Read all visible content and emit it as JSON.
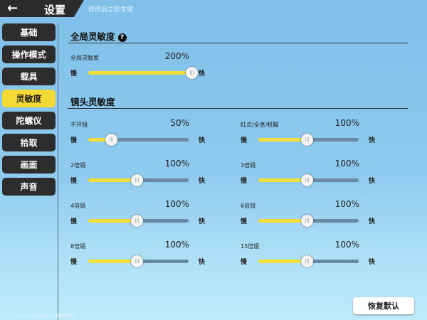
{
  "header": {
    "back_icon": "arrow-left-icon",
    "title": "设置",
    "subtitle": "修改后立即生效"
  },
  "sidebar": {
    "items": [
      {
        "label": "基础"
      },
      {
        "label": "操作模式"
      },
      {
        "label": "载具"
      },
      {
        "label": "灵敏度",
        "active": true
      },
      {
        "label": "陀螺仪"
      },
      {
        "label": "拾取"
      },
      {
        "label": "画面"
      },
      {
        "label": "声音"
      }
    ]
  },
  "global": {
    "title": "全局灵敏度",
    "help_icon": "question-icon",
    "label": "全局灵敏度",
    "value": "200%",
    "percent": 200,
    "slow": "慢",
    "fast": "快"
  },
  "camera": {
    "title": "镜头灵敏度",
    "slow": "慢",
    "fast": "快",
    "items": [
      {
        "label": "不开镜",
        "value": "50%",
        "percent": 50
      },
      {
        "label": "红点/全息/机瞄",
        "value": "100%",
        "percent": 100
      },
      {
        "label": "2倍镜",
        "value": "100%",
        "percent": 100
      },
      {
        "label": "3倍镜",
        "value": "100%",
        "percent": 100
      },
      {
        "label": "4倍镜",
        "value": "100%",
        "percent": 100
      },
      {
        "label": "6倍镜",
        "value": "100%",
        "percent": 100
      },
      {
        "label": "8倍镜",
        "value": "100%",
        "percent": 100
      },
      {
        "label": "15倍镜",
        "value": "100%",
        "percent": 100
      }
    ]
  },
  "reset_label": "恢复默认",
  "version": "V.0.14/1508 Rana 傲娇滑翔",
  "colors": {
    "accent": "#f5d935",
    "track": "#6889a4",
    "sidebar": "#2d2d2d"
  }
}
